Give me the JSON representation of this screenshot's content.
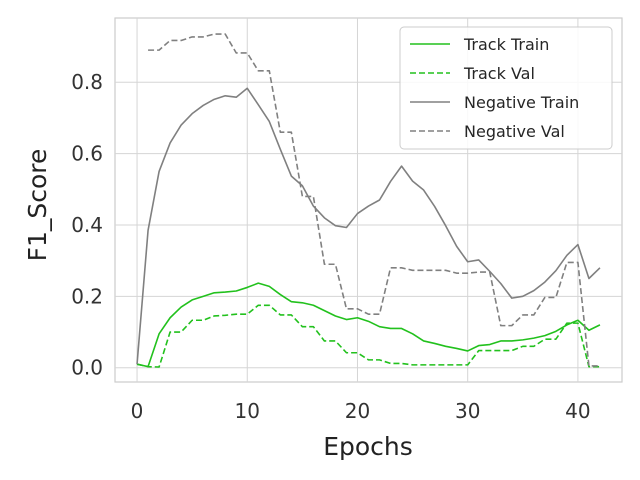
{
  "chart_data": {
    "type": "line",
    "xlabel": "Epochs",
    "ylabel": "F1_Score",
    "xlim": [
      -2,
      44
    ],
    "ylim": [
      -0.04,
      0.98
    ],
    "xticks": [
      0,
      10,
      20,
      30,
      40
    ],
    "yticks": [
      0.0,
      0.2,
      0.4,
      0.6,
      0.8
    ],
    "ytick_labels": [
      "0.0",
      "0.2",
      "0.4",
      "0.6",
      "0.8"
    ],
    "grid": true,
    "legend_position": "top-right",
    "x": [
      0,
      1,
      2,
      3,
      4,
      5,
      6,
      7,
      8,
      9,
      10,
      11,
      12,
      13,
      14,
      15,
      16,
      17,
      18,
      19,
      20,
      21,
      22,
      23,
      24,
      25,
      26,
      27,
      28,
      29,
      30,
      31,
      32,
      33,
      34,
      35,
      36,
      37,
      38,
      39,
      40,
      41,
      42
    ],
    "series": [
      {
        "name": "Track Train",
        "color": "#22c11d",
        "style": "solid",
        "values": [
          0.01,
          0.003,
          0.095,
          0.14,
          0.17,
          0.19,
          0.2,
          0.21,
          0.212,
          0.215,
          0.225,
          0.237,
          0.228,
          0.205,
          0.185,
          0.182,
          0.175,
          0.16,
          0.145,
          0.135,
          0.14,
          0.13,
          0.115,
          0.11,
          0.11,
          0.095,
          0.075,
          0.068,
          0.06,
          0.054,
          0.047,
          0.062,
          0.065,
          0.075,
          0.075,
          0.078,
          0.083,
          0.09,
          0.102,
          0.12,
          0.133,
          0.105,
          0.12
        ]
      },
      {
        "name": "Track Val",
        "color": "#22c11d",
        "style": "dashed",
        "values": [
          0.01,
          0.003,
          0.002,
          0.1,
          0.1,
          0.133,
          0.133,
          0.145,
          0.147,
          0.15,
          0.15,
          0.175,
          0.175,
          0.148,
          0.148,
          0.115,
          0.115,
          0.075,
          0.075,
          0.042,
          0.042,
          0.022,
          0.022,
          0.012,
          0.012,
          0.008,
          0.008,
          0.008,
          0.008,
          0.008,
          0.008,
          0.048,
          0.048,
          0.048,
          0.048,
          0.06,
          0.06,
          0.08,
          0.08,
          0.125,
          0.125,
          0.003,
          0.003
        ]
      },
      {
        "name": "Negative Train",
        "color": "#808080",
        "style": "solid",
        "values": [
          0.01,
          0.385,
          0.55,
          0.63,
          0.68,
          0.712,
          0.735,
          0.752,
          0.762,
          0.758,
          0.783,
          0.737,
          0.69,
          0.612,
          0.537,
          0.51,
          0.453,
          0.42,
          0.398,
          0.393,
          0.432,
          0.453,
          0.47,
          0.522,
          0.565,
          0.523,
          0.498,
          0.452,
          0.398,
          0.34,
          0.297,
          0.302,
          0.27,
          0.236,
          0.195,
          0.2,
          0.216,
          0.24,
          0.272,
          0.315,
          0.345,
          0.25,
          0.28
        ]
      },
      {
        "name": "Negative Val",
        "color": "#808080",
        "style": "dashed",
        "values": [
          null,
          0.89,
          0.89,
          0.917,
          0.917,
          0.927,
          0.927,
          0.935,
          0.935,
          0.882,
          0.882,
          0.832,
          0.832,
          0.66,
          0.66,
          0.48,
          0.48,
          0.29,
          0.29,
          0.165,
          0.165,
          0.15,
          0.15,
          0.28,
          0.28,
          0.273,
          0.273,
          0.273,
          0.273,
          0.265,
          0.265,
          0.268,
          0.268,
          0.118,
          0.118,
          0.148,
          0.148,
          0.197,
          0.197,
          0.295,
          0.295,
          0.005,
          0.005
        ]
      }
    ]
  }
}
